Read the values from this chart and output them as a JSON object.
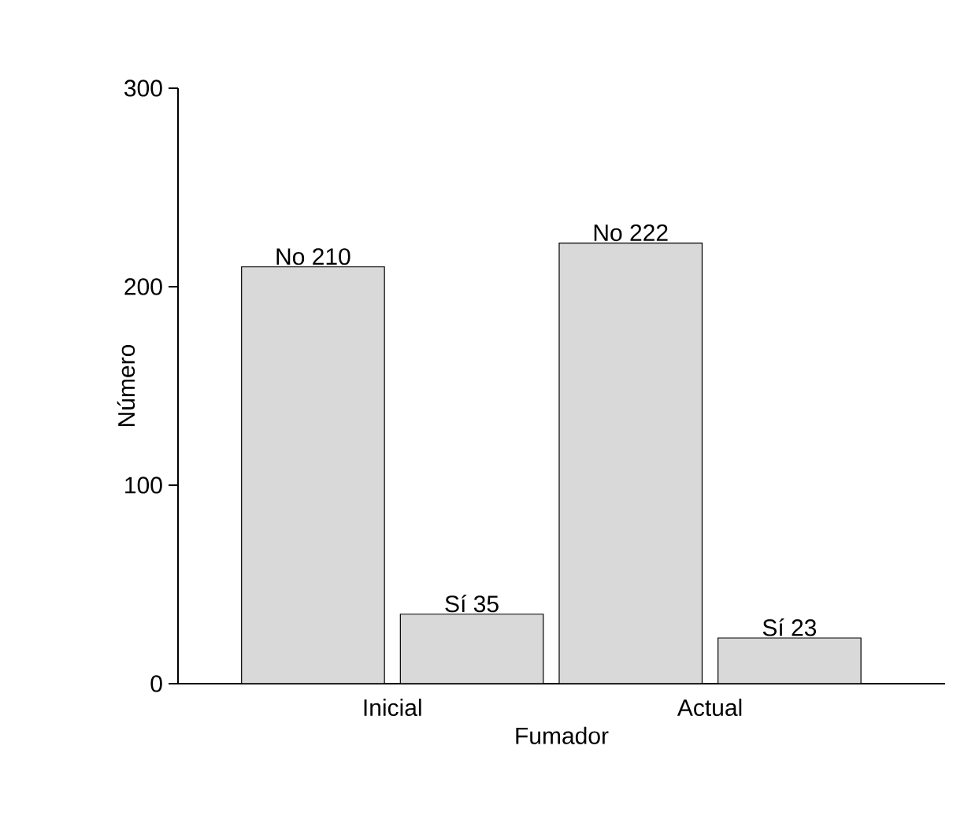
{
  "chart_data": {
    "type": "bar",
    "xlabel": "Fumador",
    "ylabel": "Número",
    "categories": [
      "Inicial",
      "Actual"
    ],
    "series": [
      {
        "color": "#d9d9d9",
        "values": [
          210,
          222
        ],
        "value_labels": [
          "No 210",
          "No 222"
        ]
      },
      {
        "color": "#d9d9d9",
        "values": [
          35,
          23
        ],
        "value_labels": [
          "Sí 35",
          "Sí 23"
        ]
      }
    ],
    "ylim": [
      0,
      300
    ],
    "yticks": [
      0,
      100,
      200,
      300
    ],
    "grid": false
  }
}
